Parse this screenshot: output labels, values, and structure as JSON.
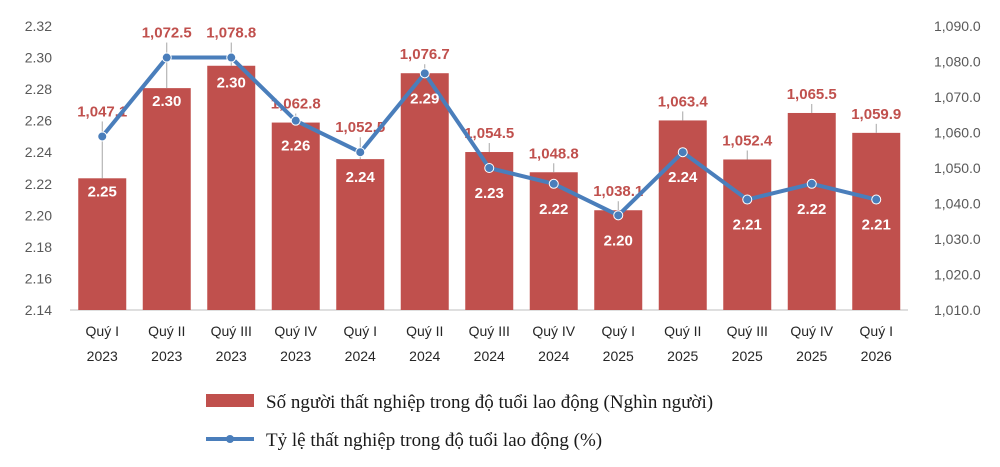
{
  "chart_data": {
    "type": "bar",
    "categories": [
      [
        "Quý I",
        "2023"
      ],
      [
        "Quý II",
        "2023"
      ],
      [
        "Quý III",
        "2023"
      ],
      [
        "Quý IV",
        "2023"
      ],
      [
        "Quý I",
        "2024"
      ],
      [
        "Quý II",
        "2024"
      ],
      [
        "Quý III",
        "2024"
      ],
      [
        "Quý IV",
        "2024"
      ],
      [
        "Quý I",
        "2025"
      ],
      [
        "Quý II",
        "2025"
      ],
      [
        "Quý III",
        "2025"
      ],
      [
        "Quý IV",
        "2025"
      ],
      [
        "Quý I",
        "2026"
      ]
    ],
    "series": [
      {
        "name": "Số người thất nghiệp trong độ tuổi lao động (Nghìn người)",
        "type": "bar",
        "axis": "right",
        "color": "#c0504d",
        "values": [
          1047.1,
          1072.5,
          1078.8,
          1062.8,
          1052.5,
          1076.7,
          1054.5,
          1048.8,
          1038.1,
          1063.4,
          1052.4,
          1065.5,
          1059.9
        ],
        "labels": [
          "1,047.1",
          "1,072.5",
          "1,078.8",
          "1,062.8",
          "1,052.5",
          "1,076.7",
          "1,054.5",
          "1,048.8",
          "1,038.1",
          "1,063.4",
          "1,052.4",
          "1,065.5",
          "1,059.9"
        ]
      },
      {
        "name": "Tỷ lệ thất nghiệp trong độ tuổi lao động (%)",
        "type": "line",
        "axis": "left",
        "color": "#4a7ebb",
        "values": [
          2.25,
          2.3,
          2.3,
          2.26,
          2.24,
          2.29,
          2.23,
          2.22,
          2.2,
          2.24,
          2.21,
          2.22,
          2.21
        ],
        "labels": [
          "2.25",
          "2.30",
          "2.30",
          "2.26",
          "2.24",
          "2.29",
          "2.23",
          "2.22",
          "2.20",
          "2.24",
          "2.21",
          "2.22",
          "2.21"
        ]
      }
    ],
    "y_left": {
      "range": [
        2.14,
        2.32
      ],
      "ticks": [
        "2.14",
        "2.16",
        "2.18",
        "2.20",
        "2.22",
        "2.24",
        "2.26",
        "2.28",
        "2.30",
        "2.32"
      ]
    },
    "y_right": {
      "range": [
        1010,
        1090
      ],
      "ticks": [
        "1,010.0",
        "1,020.0",
        "1,030.0",
        "1,040.0",
        "1,050.0",
        "1,060.0",
        "1,070.0",
        "1,080.0",
        "1,090.0"
      ]
    },
    "legend_position": "bottom",
    "grid": false
  }
}
